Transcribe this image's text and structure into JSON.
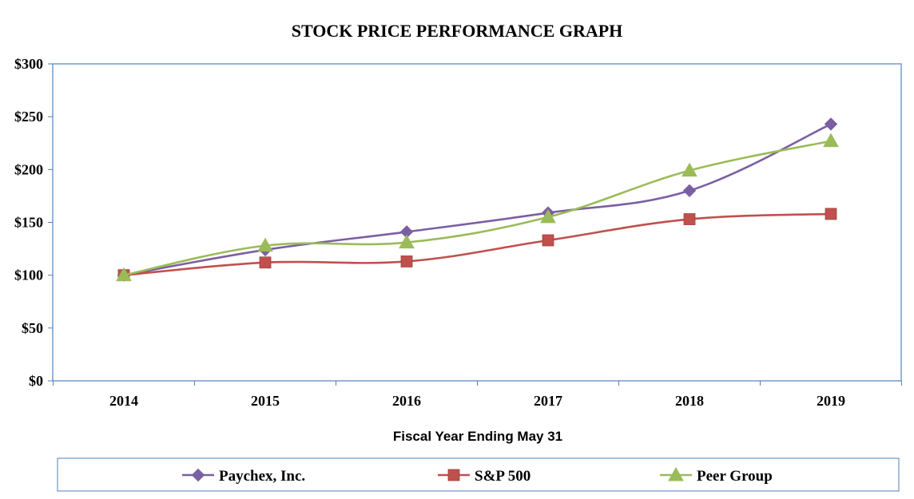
{
  "chart_data": {
    "type": "line",
    "title": "STOCK PRICE PERFORMANCE GRAPH",
    "xlabel": "Fiscal Year Ending May 31",
    "ylabel": "",
    "ylim": [
      0,
      300
    ],
    "yticks": [
      0,
      50,
      100,
      150,
      200,
      250,
      300
    ],
    "ytick_labels": [
      "$0",
      "$50",
      "$100",
      "$150",
      "$200",
      "$250",
      "$300"
    ],
    "categories": [
      "2014",
      "2015",
      "2016",
      "2017",
      "2018",
      "2019"
    ],
    "series": [
      {
        "name": "Paychex, Inc.",
        "color": "#7b5fa3",
        "marker": "diamond",
        "values": [
          100,
          124,
          141,
          159,
          180,
          243
        ]
      },
      {
        "name": "S&P 500",
        "color": "#c0504d",
        "marker": "square",
        "values": [
          100,
          112,
          113,
          133,
          153,
          158
        ]
      },
      {
        "name": "Peer Group",
        "color": "#9bbb59",
        "marker": "triangle",
        "values": [
          100,
          128,
          131,
          155,
          199,
          227
        ]
      }
    ],
    "legend_position": "bottom",
    "grid": false
  }
}
